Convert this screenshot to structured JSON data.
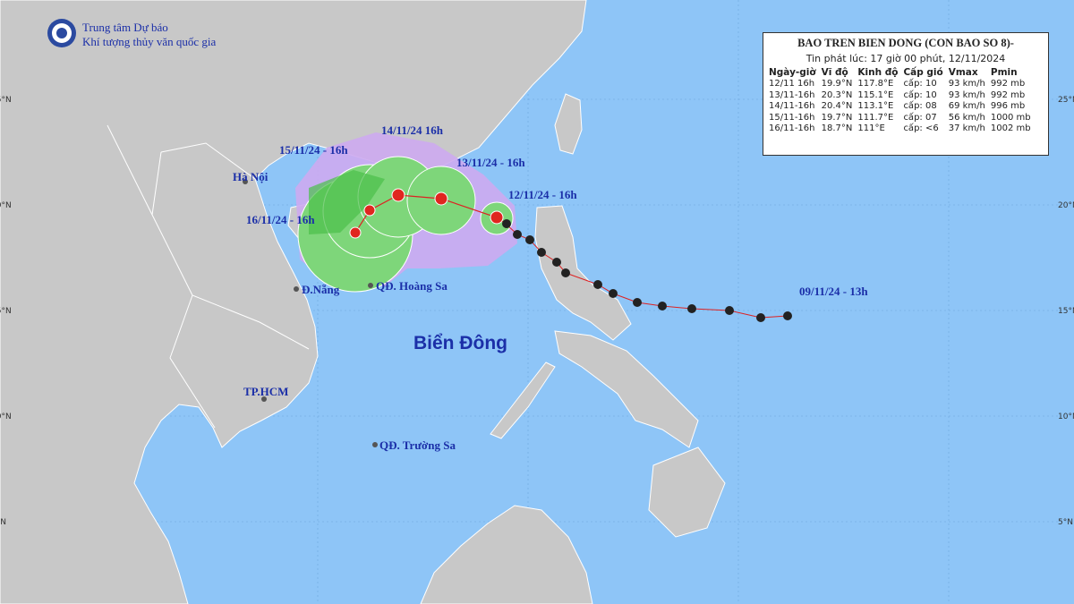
{
  "header": {
    "line1": "Trung tâm Dự báo",
    "line2": "Khí tượng thủy văn quốc gia"
  },
  "info_box": {
    "title": "BAO TREN BIEN DONG (CON BAO SO 8)-",
    "subtitle": "Tin phát lúc: 17 giờ 00 phút, 12/11/2024",
    "columns": [
      "Ngày-giờ",
      "Vĩ độ",
      "Kinh độ",
      "Cấp gió",
      "Vmax",
      "Pmin"
    ],
    "rows": [
      [
        "12/11 16h",
        "19.9°N",
        "117.8°E",
        "cấp: 10",
        "93 km/h",
        "992 mb"
      ],
      [
        "13/11-16h",
        "20.3°N",
        "115.1°E",
        "cấp: 10",
        "93 km/h",
        "992 mb"
      ],
      [
        "14/11-16h",
        "20.4°N",
        "113.1°E",
        "cấp: 08",
        "69 km/h",
        "996 mb"
      ],
      [
        "15/11-16h",
        "19.7°N",
        "111.7°E",
        "cấp: 07",
        "56 km/h",
        "1000 mb"
      ],
      [
        "16/11-16h",
        "18.7°N",
        "111°E",
        "cấp: <6",
        "37 km/h",
        "1002 mb"
      ]
    ]
  },
  "map_labels": {
    "d14": "14/11/24   16h",
    "d15": "15/11/24 - 16h",
    "d13": "13/11/24 - 16h",
    "d12": "12/11/24 - 16h",
    "d16": "16/11/24 - 16h",
    "d09": "09/11/24 - 13h",
    "hanoi": "Hà Nội",
    "danang": "Đ.Nẵng",
    "hoangsa": "QĐ. Hoàng Sa",
    "biendong": "Biển Đông",
    "hcm": "TP.HCM",
    "truongsa": "QĐ. Trường Sa"
  },
  "latitude_labels": [
    "25°N",
    "20°N",
    "15°N",
    "10°N",
    "5°N"
  ]
}
